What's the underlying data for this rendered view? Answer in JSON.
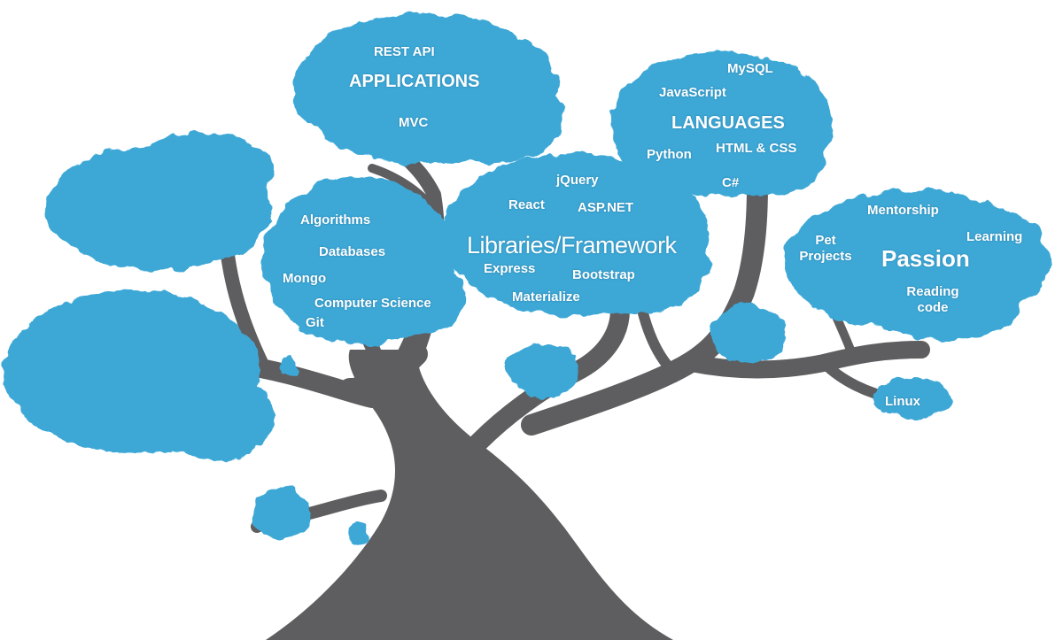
{
  "colors": {
    "foliage": "#3ea8d6",
    "foliage_dark": "#2b8fbd",
    "trunk": "#5e5e60",
    "label": "#ffffff"
  },
  "clusters": {
    "applications": {
      "heading": "APPLICATIONS",
      "items": [
        "REST API",
        "MVC"
      ]
    },
    "languages": {
      "heading": "LANGUAGES",
      "items": [
        "MySQL",
        "JavaScript",
        "Python",
        "HTML & CSS",
        "C#"
      ]
    },
    "libraries": {
      "heading": "Libraries/Framework",
      "items": [
        "jQuery",
        "React",
        "ASP.NET",
        "Express",
        "Bootstrap",
        "Materialize"
      ]
    },
    "fundamentals": {
      "items": [
        "Algorithms",
        "Databases",
        "Mongo",
        "Computer Science",
        "Git"
      ]
    },
    "passion": {
      "heading": "Passion",
      "items": [
        "Mentorship",
        "Learning",
        "Pet Projects",
        "Reading code"
      ]
    },
    "linux": {
      "items": [
        "Linux"
      ]
    }
  }
}
